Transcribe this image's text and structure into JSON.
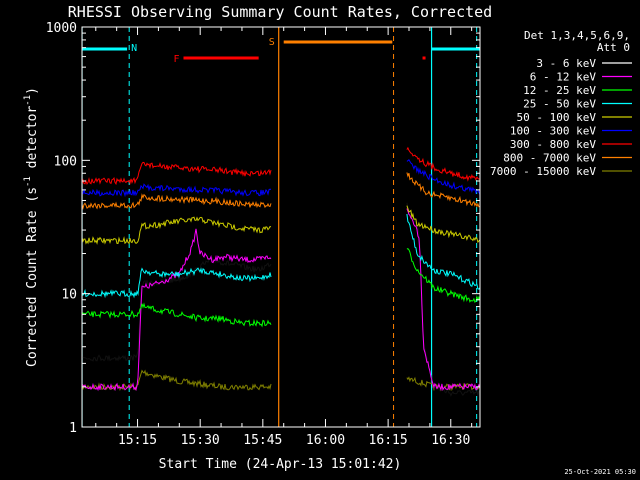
{
  "chart_data": {
    "type": "line",
    "title": "RHESSI Observing Summary Count Rates, Corrected",
    "xlabel": "Start Time (24-Apr-13 15:01:42)",
    "ylabel": "Corrected Count Rate (s⁻¹ detector⁻¹)",
    "ylabel_parts": {
      "main": "Corrected Count Rate (s",
      "exp1": "-1",
      "mid": " detector",
      "exp2": "-1",
      "end": ")"
    },
    "y_scale": "log",
    "ylim": [
      1,
      1000
    ],
    "xlim_minutes": [
      1.7,
      97.0
    ],
    "x_ticks": [
      {
        "label": "15:15",
        "value": 15
      },
      {
        "label": "15:30",
        "value": 30
      },
      {
        "label": "15:45",
        "value": 45
      },
      {
        "label": "16:00",
        "value": 60
      },
      {
        "label": "16:15",
        "value": 75
      },
      {
        "label": "16:30",
        "value": 90
      }
    ],
    "y_ticks": [
      {
        "label": "1",
        "value": 1
      },
      {
        "label": "10",
        "value": 10
      },
      {
        "label": "100",
        "value": 100
      },
      {
        "label": "1000",
        "value": 1000
      }
    ],
    "legend": {
      "title_lines": [
        "Det 1,3,4,5,6,9,",
        "Att 0"
      ],
      "position": "right"
    },
    "series": [
      {
        "name": "3 - 6 keV",
        "color": "#000000",
        "x": [
          1.7,
          15,
          16,
          20,
          25,
          28,
          30,
          33,
          36,
          40,
          44,
          47,
          79.5,
          80.5,
          81.5,
          82.5,
          83.5,
          84.5,
          86,
          90,
          97
        ],
        "values": [
          3.3,
          3.3,
          12,
          12,
          13,
          14,
          16,
          18,
          17,
          16,
          15,
          17,
          48,
          40,
          35,
          28,
          4,
          3,
          2,
          1.8,
          1.8
        ]
      },
      {
        "name": "6 - 12 keV",
        "color": "#ff00ff",
        "x": [
          1.7,
          15,
          16,
          20,
          25,
          28,
          29,
          30,
          33,
          36,
          40,
          44,
          47,
          79.5,
          80.5,
          81.5,
          82.5,
          83.5,
          84.5,
          86,
          90,
          97
        ],
        "values": [
          2,
          2,
          11,
          12,
          14,
          22,
          30,
          20,
          18,
          19,
          18,
          18,
          19,
          42,
          37,
          33,
          26,
          4,
          3,
          2,
          2,
          2
        ]
      },
      {
        "name": "12 - 25 keV",
        "color": "#00ff00",
        "x": [
          1.7,
          15,
          16,
          20,
          25,
          30,
          35,
          40,
          44,
          47,
          79.5,
          82,
          84,
          86,
          90,
          95,
          97
        ],
        "values": [
          7,
          7,
          8,
          7.5,
          7,
          6.5,
          6.5,
          6,
          6,
          6,
          22,
          15,
          13,
          11,
          10,
          9,
          9
        ]
      },
      {
        "name": "25 - 50 keV",
        "color": "#00ffff",
        "x": [
          1.7,
          15,
          16,
          20,
          25,
          30,
          35,
          40,
          44,
          47,
          79.5,
          82,
          84,
          86,
          90,
          95,
          97
        ],
        "values": [
          10,
          10,
          15,
          14,
          14,
          15,
          14,
          13,
          13,
          14,
          38,
          20,
          17,
          15,
          14,
          12,
          11
        ]
      },
      {
        "name": "50 - 100 keV",
        "color": "#cccc00",
        "x": [
          1.7,
          15,
          16,
          20,
          25,
          30,
          35,
          40,
          44,
          47,
          79.5,
          82,
          84,
          86,
          90,
          95,
          97
        ],
        "values": [
          25,
          25,
          32,
          33,
          35,
          36,
          33,
          31,
          30,
          31,
          45,
          33,
          32,
          30,
          28,
          26,
          25
        ]
      },
      {
        "name": "100 - 300 keV",
        "color": "#0000ff",
        "x": [
          1.7,
          15,
          16,
          20,
          25,
          30,
          35,
          40,
          44,
          47,
          79.5,
          82,
          84,
          86,
          90,
          95,
          97
        ],
        "values": [
          57,
          57,
          63,
          62,
          61,
          60,
          59,
          57,
          57,
          58,
          100,
          85,
          78,
          72,
          65,
          60,
          57
        ]
      },
      {
        "name": "300 - 800 keV",
        "color": "#ff0000",
        "x": [
          1.7,
          15,
          16,
          20,
          25,
          30,
          35,
          40,
          44,
          47,
          79.5,
          82,
          84,
          86,
          90,
          95,
          97
        ],
        "values": [
          70,
          70,
          95,
          90,
          88,
          86,
          84,
          80,
          80,
          82,
          125,
          105,
          95,
          88,
          80,
          74,
          72
        ]
      },
      {
        "name": "800 - 7000 keV",
        "color": "#ff8000",
        "x": [
          1.7,
          15,
          16,
          20,
          25,
          30,
          35,
          40,
          44,
          47,
          79.5,
          82,
          84,
          86,
          90,
          95,
          97
        ],
        "values": [
          46,
          46,
          53,
          52,
          51,
          50,
          49,
          47,
          46,
          47,
          80,
          65,
          58,
          55,
          52,
          48,
          47
        ]
      },
      {
        "name": "7000 - 15000 keV",
        "color": "#808000",
        "x": [
          1.7,
          15,
          16,
          20,
          25,
          30,
          35,
          40,
          44,
          47,
          79.5,
          82,
          84,
          86,
          90,
          95,
          97
        ],
        "values": [
          2,
          2,
          2.6,
          2.4,
          2.2,
          2.1,
          2,
          2,
          2,
          2,
          2.3,
          2.2,
          2.1,
          2,
          2,
          2,
          2
        ]
      }
    ],
    "annotations": {
      "night_segments": [
        {
          "x0": 1.7,
          "x1": 12.5
        },
        {
          "x0": 85.5,
          "x1": 97
        }
      ],
      "flare_segments": [
        {
          "x0": 26,
          "x1": 44
        }
      ],
      "flare_points": [
        {
          "x": 83.6
        }
      ],
      "saa_segments": [
        {
          "x0": 50,
          "x1": 76
        }
      ],
      "n_label": "N",
      "f_label": "F",
      "s_label": "S",
      "cyan_dashed_x": [
        13,
        96.2
      ],
      "cyan_solid_x": [
        1.7,
        85.4
      ],
      "orange_solid_x": [
        48.8
      ],
      "orange_dashed_x": [
        76.3
      ],
      "gap": {
        "x0": 47.2,
        "x1": 79.0
      }
    }
  },
  "footer": {
    "timestamp": "25-Oct-2021 05:30"
  }
}
